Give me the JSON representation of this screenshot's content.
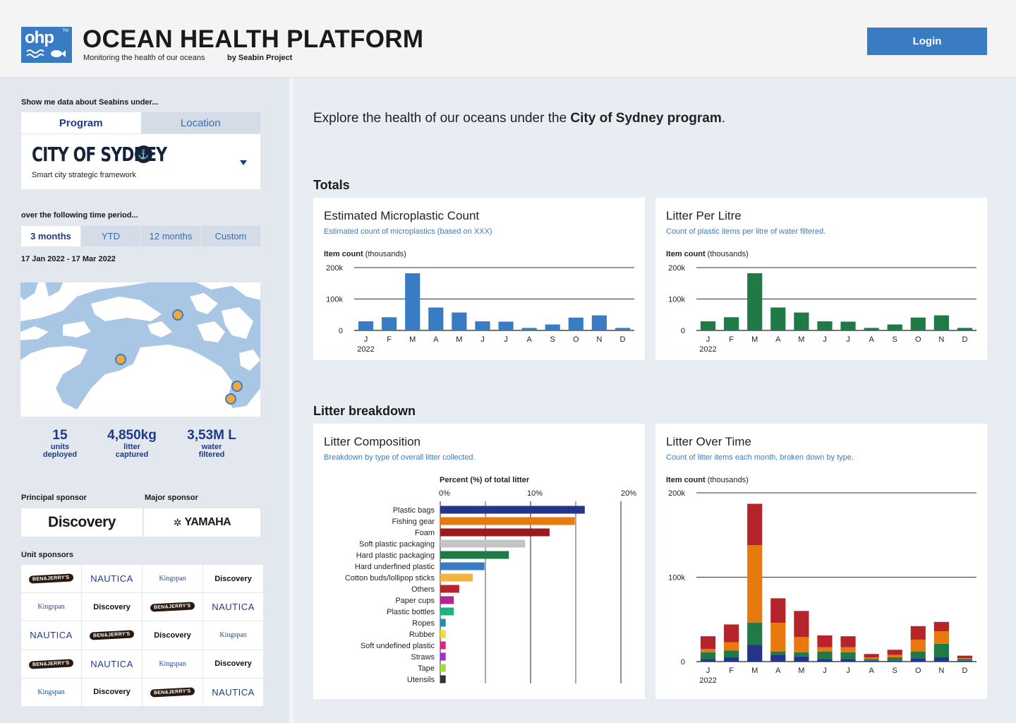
{
  "header": {
    "logo_text": "ohp",
    "logo_tm": "TM",
    "title": "OCEAN HEALTH PLATFORM",
    "tagline": "Monitoring the health of our oceans",
    "byline": "by Seabin Project",
    "login_label": "Login"
  },
  "sidebar": {
    "show_label": "Show me data about Seabins under...",
    "tabs": [
      "Program",
      "Location"
    ],
    "program": {
      "name": "CITY OF SYDNEY",
      "subtitle": "Smart city strategic framework"
    },
    "period_label": "over the following time period...",
    "periods": [
      "3 months",
      "YTD",
      "12 months",
      "Custom"
    ],
    "date_range": "17 Jan 2022 - 17 Mar 2022",
    "stats": [
      {
        "value": "15",
        "label1": "units",
        "label2": "deployed"
      },
      {
        "value": "4,850kg",
        "label1": "litter",
        "label2": "captured"
      },
      {
        "value": "3,53M L",
        "label1": "water",
        "label2": "filtered"
      }
    ],
    "principal_label": "Principal sponsor",
    "major_label": "Major sponsor",
    "principal_sponsor": "Discovery",
    "major_sponsor": "YAMAHA",
    "unit_label": "Unit sponsors",
    "unit_sponsors": [
      "BEN&JERRY'S",
      "NAUTICA",
      "Kingspan",
      "Discovery",
      "Kingspan",
      "Discovery",
      "BEN&JERRY'S",
      "NAUTICA",
      "NAUTICA",
      "BEN&JERRY'S",
      "Discovery",
      "Kingspan",
      "BEN&JERRY'S",
      "NAUTICA",
      "Kingspan",
      "Discovery",
      "Kingspan",
      "Discovery",
      "BEN&JERRY'S",
      "NAUTICA"
    ]
  },
  "main": {
    "intro_prefix": "Explore the health of our oceans under the ",
    "intro_bold": "City of Sydney program",
    "intro_suffix": ".",
    "totals_title": "Totals",
    "breakdown_title": "Litter breakdown",
    "colors": {
      "accent": "#3a7cc3",
      "green": "#1f7a45",
      "navy": "#1e3a8a"
    }
  },
  "chart_data": [
    {
      "type": "bar",
      "title": "Estimated Microplastic Count",
      "subtitle": "Estimated count of microplastics (based on XXX)",
      "ylabel_bold": "Item count",
      "ylabel_rest": " (thousands)",
      "categories": [
        "J",
        "F",
        "M",
        "A",
        "M",
        "J",
        "J",
        "A",
        "S",
        "O",
        "N",
        "D"
      ],
      "year_label": "2022",
      "values": [
        29,
        42,
        182,
        73,
        57,
        29,
        28,
        8,
        19,
        41,
        48,
        8
      ],
      "yticks": [
        "0",
        "100k",
        "200k"
      ],
      "ylim": [
        0,
        200
      ],
      "color": "#3a7cc3"
    },
    {
      "type": "bar",
      "title": "Litter Per Litre",
      "subtitle": "Count of plastic items per litre of water filtered.",
      "ylabel_bold": "Item count",
      "ylabel_rest": " (thousands)",
      "categories": [
        "J",
        "F",
        "M",
        "A",
        "M",
        "J",
        "J",
        "A",
        "S",
        "O",
        "N",
        "D"
      ],
      "year_label": "2022",
      "values": [
        29,
        42,
        182,
        73,
        57,
        29,
        28,
        8,
        19,
        41,
        48,
        8
      ],
      "yticks": [
        "0",
        "100k",
        "200k"
      ],
      "ylim": [
        0,
        200
      ],
      "color": "#1f7a45"
    },
    {
      "type": "bar",
      "orientation": "horizontal",
      "title": "Litter Composition",
      "subtitle": "Breakdown by type of overall litter collected.",
      "xlabel": "Percent (%) of total litter",
      "xticks": [
        "0%",
        "10%",
        "20%"
      ],
      "xlim": [
        0,
        20
      ],
      "categories": [
        "Plastic bags",
        "Fishing gear",
        "Foam",
        "Soft plastic packaging",
        "Hard plastic packaging",
        "Hard underfined plastic",
        "Cotton buds/lollipop sticks",
        "Others",
        "Paper cups",
        "Plastic bottles",
        "Ropes",
        "Rubber",
        "Soft undefined plastic",
        "Straws",
        "Tape",
        "Utensils"
      ],
      "values": [
        16,
        14.9,
        12.1,
        9.4,
        7.6,
        4.9,
        3.6,
        2.1,
        1.5,
        1.5,
        0.6,
        0.6,
        0.6,
        0.6,
        0.6,
        0.6
      ],
      "colors": [
        "#24348a",
        "#e8790f",
        "#9a1a1f",
        "#c4c4c4",
        "#1f7a45",
        "#3a7cc3",
        "#f4b440",
        "#b5242b",
        "#b3268e",
        "#22b07d",
        "#1f8fb0",
        "#f6d83a",
        "#e3237a",
        "#9c2fd1",
        "#a9d63a",
        "#333333"
      ]
    },
    {
      "type": "bar",
      "stacked": true,
      "title": "Litter Over Time",
      "subtitle": "Count of litter items each month, broken down by type.",
      "ylabel_bold": "Item count",
      "ylabel_rest": " (thousands)",
      "categories": [
        "J",
        "F",
        "M",
        "A",
        "M",
        "J",
        "J",
        "A",
        "S",
        "O",
        "N",
        "D"
      ],
      "year_label": "2022",
      "yticks": [
        "0",
        "100k",
        "200k"
      ],
      "ylim": [
        0,
        200
      ],
      "series": [
        {
          "color": "#24348a",
          "values": [
            3,
            5,
            20,
            8,
            6,
            3,
            3,
            1,
            1,
            4,
            5,
            1
          ]
        },
        {
          "color": "#1f7a45",
          "values": [
            8,
            8,
            26,
            4,
            5,
            9,
            8,
            2,
            4,
            8,
            16,
            2
          ]
        },
        {
          "color": "#e8790f",
          "values": [
            4,
            10,
            92,
            34,
            18,
            5,
            6,
            2,
            3,
            14,
            15,
            1
          ]
        },
        {
          "color": "#b5242b",
          "values": [
            15,
            21,
            49,
            29,
            31,
            14,
            13,
            4,
            6,
            16,
            11,
            3
          ]
        }
      ]
    }
  ]
}
